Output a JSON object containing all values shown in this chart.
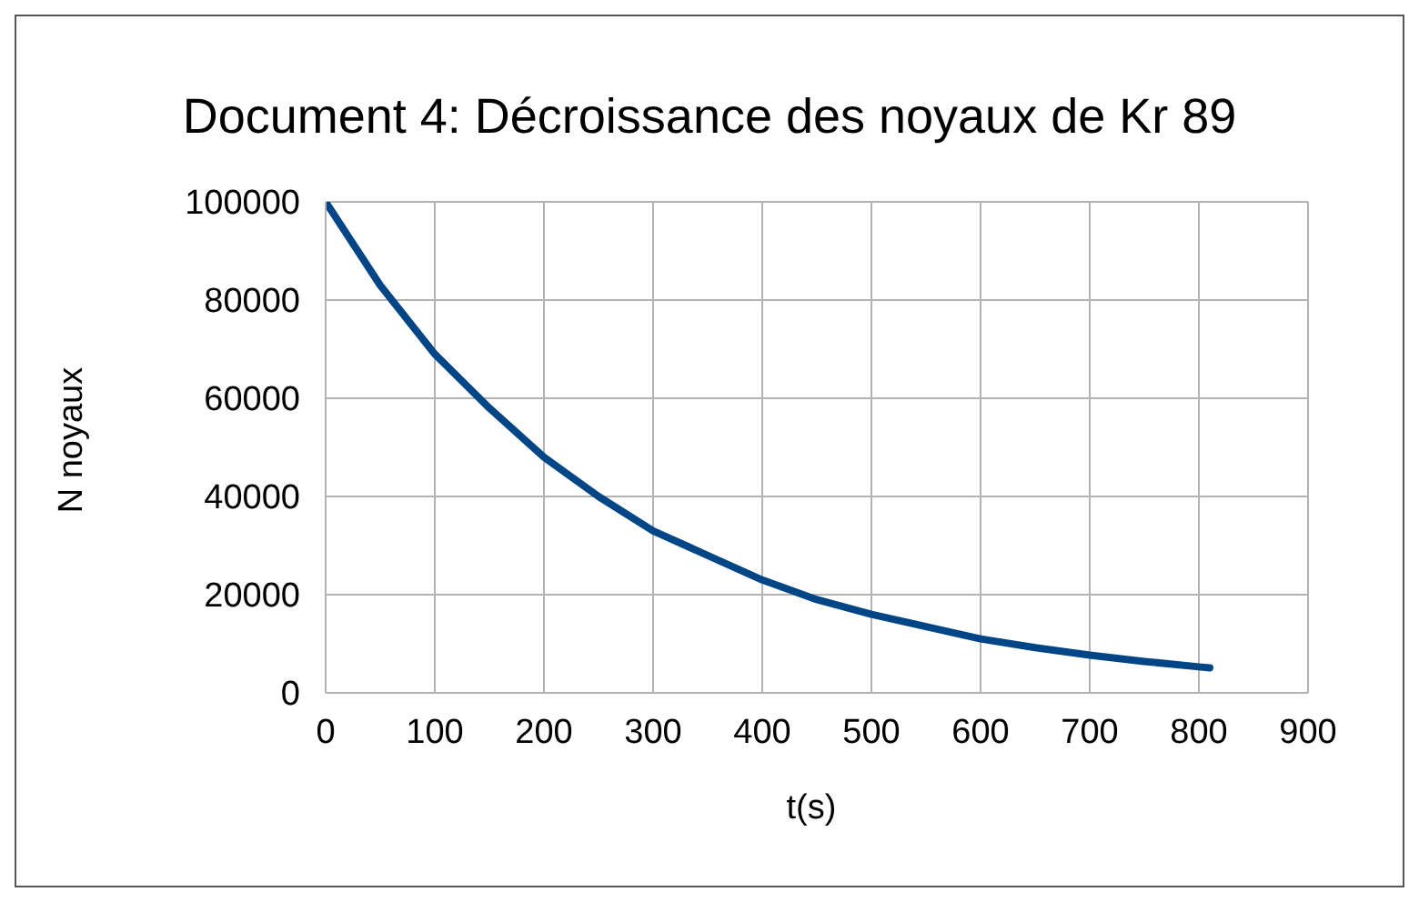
{
  "chart_data": {
    "type": "line",
    "title": "Document 4: Décroissance des noyaux de Kr 89",
    "xlabel": "t(s)",
    "ylabel": "N noyaux",
    "x": [
      0,
      50,
      100,
      150,
      200,
      250,
      300,
      350,
      400,
      450,
      500,
      550,
      600,
      650,
      700,
      750,
      800,
      810
    ],
    "series": [
      {
        "color": "#004586",
        "values": [
          100000,
          83000,
          69000,
          58000,
          48000,
          40000,
          33000,
          28000,
          23000,
          19000,
          16000,
          13500,
          11000,
          9200,
          7700,
          6400,
          5300,
          5100
        ]
      }
    ],
    "xlim": [
      0,
      900
    ],
    "xticks": [
      0,
      100,
      200,
      300,
      400,
      500,
      600,
      700,
      800,
      900
    ],
    "ylim": [
      0,
      100000
    ],
    "yticks": [
      0,
      20000,
      40000,
      60000,
      80000,
      100000
    ],
    "grid": true,
    "legend": false,
    "marker": "none",
    "line_style": "solid"
  }
}
